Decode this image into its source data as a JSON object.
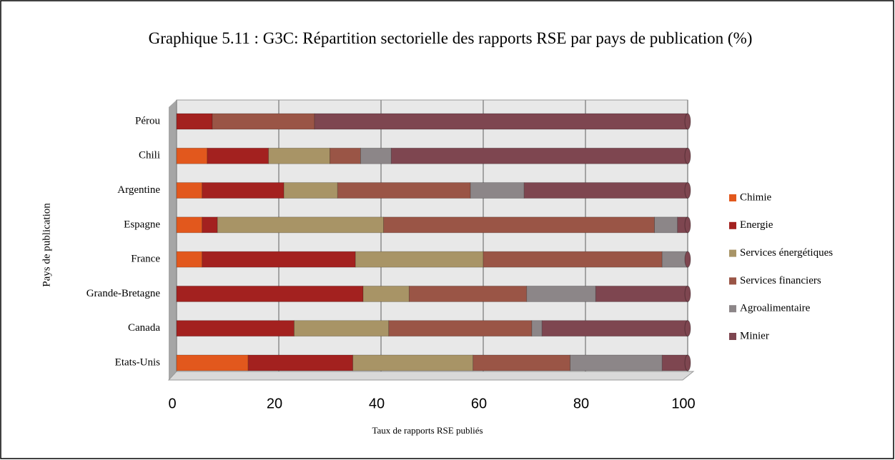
{
  "chart_data": {
    "type": "stacked_barh",
    "title": "Graphique 5.11 : G3C: Répartition sectorielle des rapports RSE par pays de publication (%)",
    "x_label": "Taux de rapports RSE publiés",
    "y_label": "Pays de publication",
    "categories": [
      "Etats-Unis",
      "Canada",
      "Grande-Bretagne",
      "France",
      "Espagne",
      "Argentine",
      "Chili",
      "Pérou"
    ],
    "series": [
      {
        "name": "Chimie",
        "color": "#e2581d",
        "values": [
          14,
          0,
          0,
          5,
          5,
          5,
          6,
          0
        ]
      },
      {
        "name": "Energie",
        "color": "#a3211f",
        "values": [
          20.5,
          23,
          36.5,
          30,
          3,
          16,
          12,
          7
        ]
      },
      {
        "name": "Services énergétiques",
        "color": "#a89466",
        "values": [
          23.5,
          18.5,
          9,
          25,
          32.5,
          10.5,
          12,
          0
        ]
      },
      {
        "name": "Services financiers",
        "color": "#9a5546",
        "values": [
          19,
          28,
          23,
          35,
          53,
          26,
          6,
          20
        ]
      },
      {
        "name": "Agroalimentaire",
        "color": "#8c8688",
        "values": [
          18,
          2,
          13.5,
          5,
          4.5,
          10.5,
          6,
          0
        ]
      },
      {
        "name": "Minier",
        "color": "#7e4650",
        "values": [
          5,
          28.5,
          18,
          0,
          2,
          32,
          58,
          73
        ]
      }
    ],
    "xlim": [
      0,
      100
    ],
    "xticks": [
      0,
      20,
      40,
      60,
      80,
      100
    ],
    "grid": true,
    "legend": "right"
  }
}
